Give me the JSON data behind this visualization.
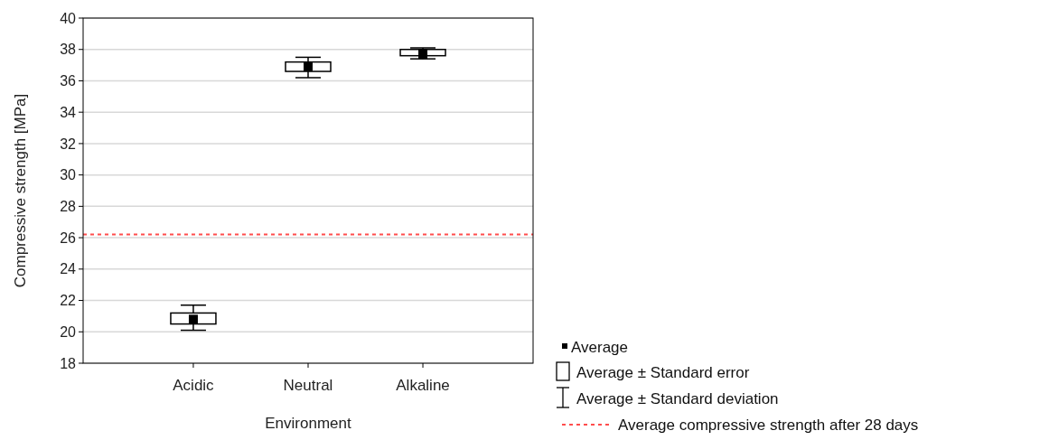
{
  "chart_data": {
    "type": "box",
    "xlabel": "Environment",
    "ylabel": "Compressive strength [MPa]",
    "categories": [
      "Acidic",
      "Neutral",
      "Alkaline"
    ],
    "boxes": [
      {
        "low": 20.1,
        "q1": 20.5,
        "median": 20.8,
        "q3": 21.2,
        "high": 21.7
      },
      {
        "low": 36.2,
        "q1": 36.6,
        "median": 36.9,
        "q3": 37.2,
        "high": 37.5
      },
      {
        "low": 37.4,
        "q1": 37.6,
        "median": 37.7,
        "q3": 38.0,
        "high": 38.1
      }
    ],
    "ylim": [
      18,
      40
    ],
    "yticks": [
      18,
      20,
      22,
      24,
      26,
      28,
      30,
      32,
      34,
      36,
      38,
      40
    ],
    "grid": "y",
    "marker": "square",
    "legend": "bottom right",
    "ref_lines": [
      {
        "axis": "y",
        "value": 26.2,
        "label": "Average compressive strength after 28 days",
        "color": "#ff4d4d",
        "line_style": "dashed"
      }
    ],
    "annotations": [
      "Average",
      "Average ±  Standard error",
      "Average ±  Standard deviation"
    ]
  }
}
